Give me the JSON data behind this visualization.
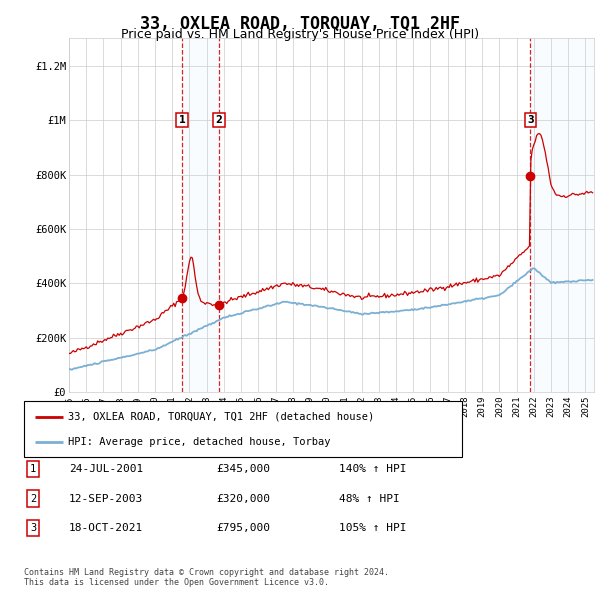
{
  "title": "33, OXLEA ROAD, TORQUAY, TQ1 2HF",
  "subtitle": "Price paid vs. HM Land Registry's House Price Index (HPI)",
  "title_fontsize": 12,
  "subtitle_fontsize": 9,
  "ylim": [
    0,
    1300000
  ],
  "yticks": [
    0,
    200000,
    400000,
    600000,
    800000,
    1000000,
    1200000
  ],
  "ytick_labels": [
    "£0",
    "£200K",
    "£400K",
    "£600K",
    "£800K",
    "£1M",
    "£1.2M"
  ],
  "background_color": "#ffffff",
  "plot_bg_color": "#ffffff",
  "grid_color": "#cccccc",
  "hpi_line_color": "#7bafd4",
  "price_line_color": "#cc0000",
  "shade_color": "#ddeeff",
  "sale1_date": 2001.56,
  "sale1_price": 345000,
  "sale2_date": 2003.71,
  "sale2_price": 320000,
  "sale3_date": 2021.8,
  "sale3_price": 795000,
  "legend_line1": "33, OXLEA ROAD, TORQUAY, TQ1 2HF (detached house)",
  "legend_line2": "HPI: Average price, detached house, Torbay",
  "table_entries": [
    {
      "num": "1",
      "date": "24-JUL-2001",
      "price": "£345,000",
      "hpi": "140% ↑ HPI"
    },
    {
      "num": "2",
      "date": "12-SEP-2003",
      "price": "£320,000",
      "hpi": "48% ↑ HPI"
    },
    {
      "num": "3",
      "date": "18-OCT-2021",
      "price": "£795,000",
      "hpi": "105% ↑ HPI"
    }
  ],
  "footer": "Contains HM Land Registry data © Crown copyright and database right 2024.\nThis data is licensed under the Open Government Licence v3.0.",
  "xmin": 1995.0,
  "xmax": 2025.5
}
